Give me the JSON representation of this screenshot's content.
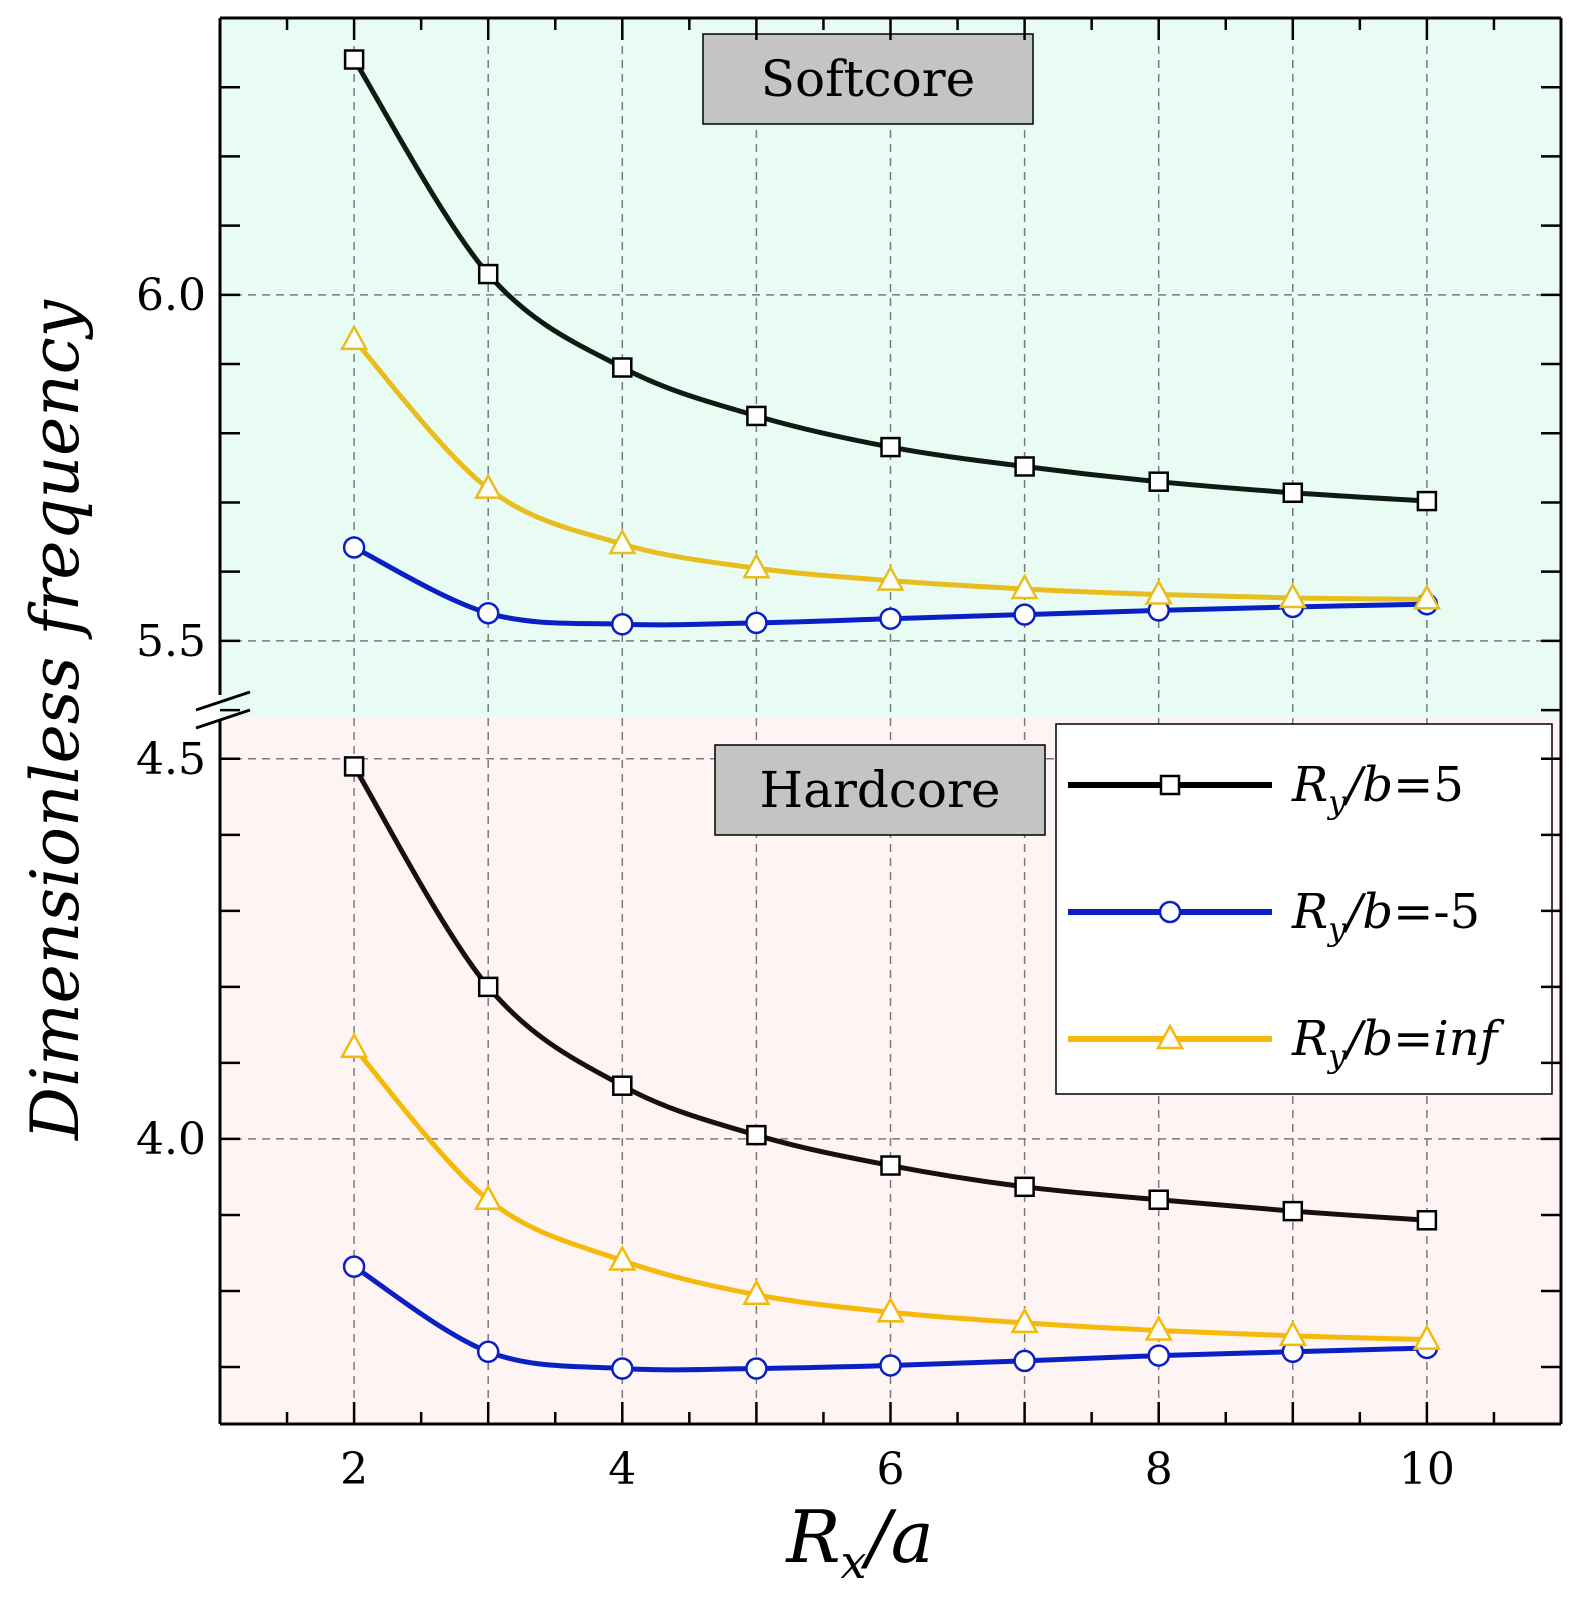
{
  "chart_data": {
    "type": "line",
    "xlabel": "Rx/a",
    "ylabel": "Dimensionless frequency",
    "x": [
      2,
      3,
      4,
      5,
      6,
      7,
      8,
      9,
      10
    ],
    "xlim": [
      1,
      11
    ],
    "xticks": [
      2,
      4,
      6,
      8,
      10
    ],
    "grid": true,
    "legend_position": "center-right",
    "panels": [
      {
        "name": "Softcore",
        "ylim": [
          5.39,
          6.4
        ],
        "yticks": [
          5.5,
          6.0
        ],
        "ytick_labels": [
          "5.5",
          "6.0"
        ],
        "background": "#e8fcf4",
        "series": [
          {
            "name": "Ry/b=5",
            "color": "#0f1a12",
            "marker": "square",
            "values": [
              6.34,
              6.03,
              5.895,
              5.825,
              5.78,
              5.752,
              5.73,
              5.714,
              5.702
            ]
          },
          {
            "name": "Ry/b=-5",
            "color": "#0a1fc4",
            "marker": "circle",
            "values": [
              5.635,
              5.54,
              5.524,
              5.526,
              5.532,
              5.538,
              5.544,
              5.549,
              5.553
            ]
          },
          {
            "name": "Ry/b=inf",
            "color": "#e8bd1e",
            "marker": "triangle",
            "values": [
              5.935,
              5.72,
              5.64,
              5.605,
              5.587,
              5.575,
              5.567,
              5.562,
              5.56
            ]
          }
        ]
      },
      {
        "name": "Hardcore",
        "ylim": [
          3.625,
          4.555
        ],
        "yticks": [
          4.0,
          4.5
        ],
        "ytick_labels": [
          "4.0",
          "4.5"
        ],
        "background": "#fdf4f3",
        "series": [
          {
            "name": "Ry/b=5",
            "color": "#1a0f0f",
            "marker": "square",
            "values": [
              4.49,
              4.2,
              4.07,
              4.005,
              3.965,
              3.937,
              3.92,
              3.905,
              3.893
            ]
          },
          {
            "name": "Ry/b=-5",
            "color": "#0a1fc4",
            "marker": "circle",
            "values": [
              3.832,
              3.72,
              3.698,
              3.698,
              3.702,
              3.708,
              3.715,
              3.72,
              3.725
            ]
          },
          {
            "name": "Ry/b=inf",
            "color": "#f5b90a",
            "marker": "triangle",
            "values": [
              4.12,
              3.92,
              3.84,
              3.795,
              3.772,
              3.758,
              3.748,
              3.741,
              3.736
            ]
          }
        ]
      }
    ],
    "legend": [
      {
        "label": "Ry/b=5",
        "color": "#000000",
        "marker": "square"
      },
      {
        "label": "Ry/b=-5",
        "color": "#0a1fc4",
        "marker": "circle"
      },
      {
        "label": "Ry/b=inf",
        "color": "#f5b90a",
        "marker": "triangle"
      }
    ]
  }
}
